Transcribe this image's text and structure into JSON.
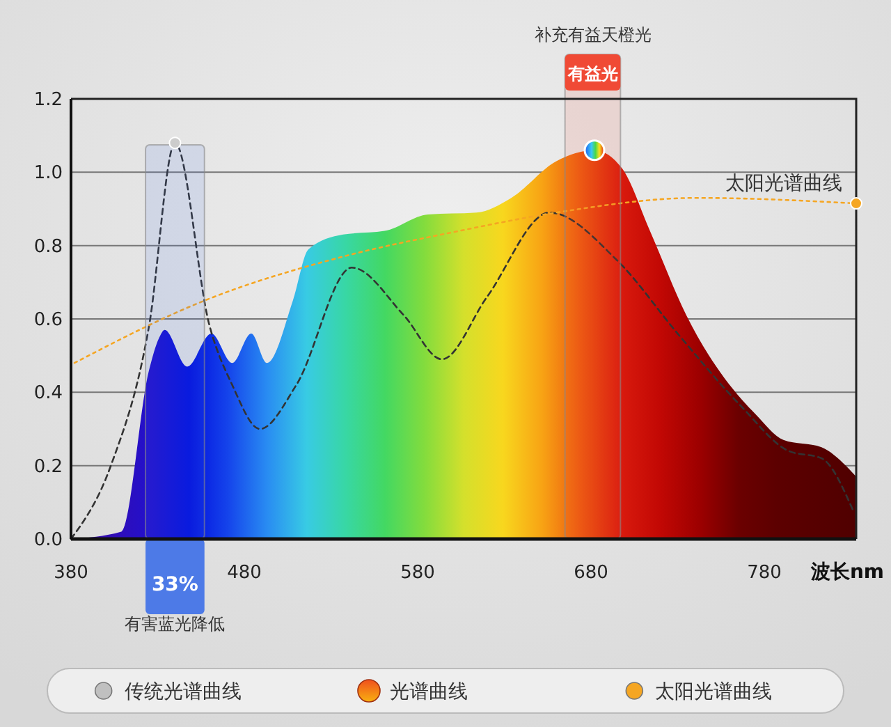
{
  "chart_data": {
    "type": "line",
    "xlabel": "波长nm",
    "xlim": [
      380,
      833
    ],
    "ylim": [
      0,
      1.2
    ],
    "xticks": [
      380,
      480,
      580,
      680,
      780
    ],
    "yticks": [
      {
        "value": 0,
        "label": "0.0"
      },
      {
        "value": 0.2,
        "label": "0.2"
      },
      {
        "value": 0.4,
        "label": "0.4"
      },
      {
        "value": 0.6,
        "label": "0.6"
      },
      {
        "value": 0.8,
        "label": "0.8"
      },
      {
        "value": 1,
        "label": "1.0"
      },
      {
        "value": 1.2,
        "label": "1.2"
      }
    ],
    "grid": "y",
    "legend": "bottom",
    "marker": "none",
    "series": [
      {
        "name": "传统光谱曲线",
        "line_style": "dashed",
        "color": "#333333",
        "x": [
          380,
          403,
          425,
          440,
          460,
          473,
          489,
          510,
          542,
          572,
          594,
          620,
          656,
          695,
          730,
          767,
          794,
          813,
          831
        ],
        "values": [
          0,
          0.2,
          0.58,
          1.08,
          0.58,
          0.42,
          0.3,
          0.42,
          0.74,
          0.61,
          0.49,
          0.66,
          0.89,
          0.76,
          0.56,
          0.36,
          0.24,
          0.22,
          0.08
        ]
      },
      {
        "name": "光谱曲线",
        "type": "area",
        "color": "#f0501e",
        "x": [
          380,
          409,
          425,
          431,
          434,
          447,
          461,
          473,
          484,
          493,
          508,
          517,
          537,
          561,
          586,
          614,
          634,
          660,
          682,
          698,
          714,
          735,
          767,
          775,
          791,
          813,
          827,
          833
        ],
        "values": [
          0,
          0.02,
          0.46,
          0.55,
          0.57,
          0.47,
          0.56,
          0.48,
          0.56,
          0.48,
          0.65,
          0.79,
          0.83,
          0.84,
          0.885,
          0.89,
          0.93,
          1.03,
          1.06,
          1.01,
          0.84,
          0.61,
          0.38,
          0.34,
          0.27,
          0.25,
          0.2,
          0.17
        ]
      },
      {
        "name": "太阳光谱曲线",
        "line_style": "dotted",
        "color": "#f5a623",
        "x": [
          382,
          457,
          537,
          604,
          660,
          741,
          833
        ],
        "values": [
          0.48,
          0.65,
          0.77,
          0.84,
          0.89,
          0.93,
          0.915
        ]
      }
    ],
    "bands": [
      {
        "axis": "x",
        "from": 423,
        "to": 457,
        "label": "33%",
        "color": "#3d6fe8"
      },
      {
        "axis": "x",
        "from": 665,
        "to": 697,
        "label": "有益光",
        "color": "#f04a35"
      }
    ],
    "annotations": [
      "有害蓝光降低",
      "补充有益天橙光"
    ]
  }
}
